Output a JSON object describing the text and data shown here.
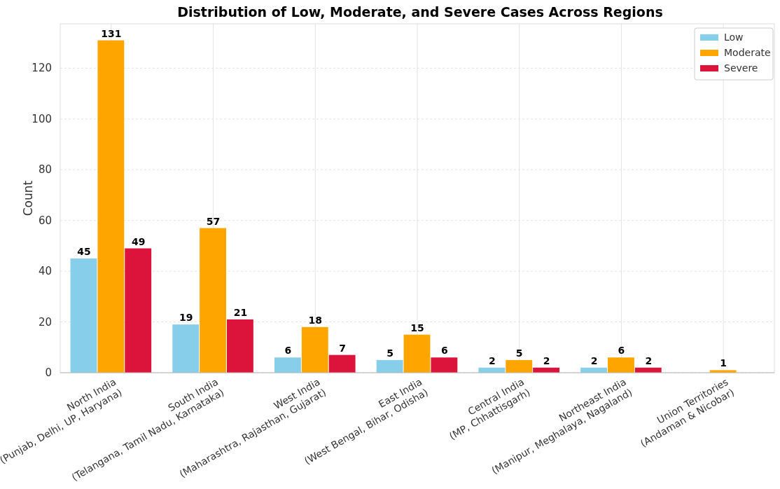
{
  "chart_data": {
    "type": "bar",
    "title": "Distribution of Low, Moderate, and Severe Cases Across Regions",
    "ylabel": "Count",
    "categories": [
      "North India\n(Punjab, Delhi, UP, Haryana)",
      "South India\n(Telangana, Tamil Nadu, Karnataka)",
      "West India\n(Maharashtra, Rajasthan, Gujarat)",
      "East India\n(West Bengal, Bihar, Odisha)",
      "Central India\n(MP, Chhattisgarh)",
      "Northeast India\n(Manipur, Meghalaya, Nagaland)",
      "Union Territories\n(Andaman & Nicobar)"
    ],
    "series": [
      {
        "name": "Low",
        "color": "#87ceeb",
        "values": [
          45,
          19,
          6,
          5,
          2,
          2,
          0
        ],
        "value_labels": [
          "45",
          "19",
          "6",
          "5",
          "2",
          "2",
          null
        ]
      },
      {
        "name": "Moderate",
        "color": "#ffa500",
        "values": [
          131,
          57,
          18,
          15,
          5,
          6,
          1
        ],
        "value_labels": [
          "131",
          "57",
          "18",
          "15",
          "5",
          "6",
          "1"
        ]
      },
      {
        "name": "Severe",
        "color": "#dc143c",
        "values": [
          49,
          21,
          7,
          6,
          2,
          2,
          0
        ],
        "value_labels": [
          "49",
          "21",
          "7",
          "6",
          "2",
          "2",
          null
        ]
      }
    ],
    "ylim": [
      0,
      137.5
    ],
    "yticks": [
      0,
      20,
      40,
      60,
      80,
      100,
      120
    ],
    "grid": true,
    "legend": "top right"
  }
}
